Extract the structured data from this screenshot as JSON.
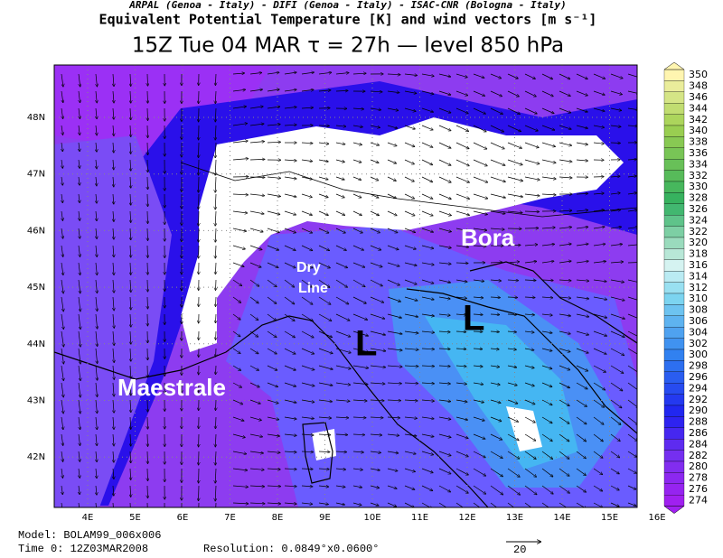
{
  "header": {
    "institutions": "ARPAL (Genoa - Italy)  -  DIFI (Genoa - Italy)  -  ISAC-CNR (Bologna - Italy)",
    "variable": "Equivalent Potential Temperature [K] and wind vectors [m s⁻¹]",
    "valid_time": "15Z Tue 04 MAR  τ = 27h  —  level 850 hPa"
  },
  "map": {
    "labels": {
      "bora": "Bora",
      "dry_line_1": "Dry",
      "dry_line_2": "Line",
      "maestrale": "Maestrale",
      "low_1": "L",
      "low_2": "L"
    },
    "lat_ticks": [
      "48N",
      "47N",
      "46N",
      "45N",
      "44N",
      "43N",
      "42N"
    ],
    "lon_ticks": [
      "4E",
      "5E",
      "6E",
      "7E",
      "8E",
      "9E",
      "10E",
      "11E",
      "12E",
      "13E",
      "14E",
      "15E",
      "16E"
    ]
  },
  "colorbar": {
    "labels": [
      350,
      348,
      346,
      344,
      342,
      340,
      338,
      336,
      334,
      332,
      330,
      328,
      326,
      324,
      322,
      320,
      318,
      316,
      314,
      312,
      310,
      308,
      306,
      304,
      302,
      300,
      298,
      296,
      294,
      292,
      290,
      288,
      286,
      284,
      282,
      280,
      278,
      276,
      274
    ]
  },
  "footer": {
    "model": "Model: BOLAM99_006x006",
    "time": "Time 0: 12Z03MAR2008",
    "resolution": "Resolution: 0.0849°x0.0600°",
    "vector_scale": "20"
  }
}
